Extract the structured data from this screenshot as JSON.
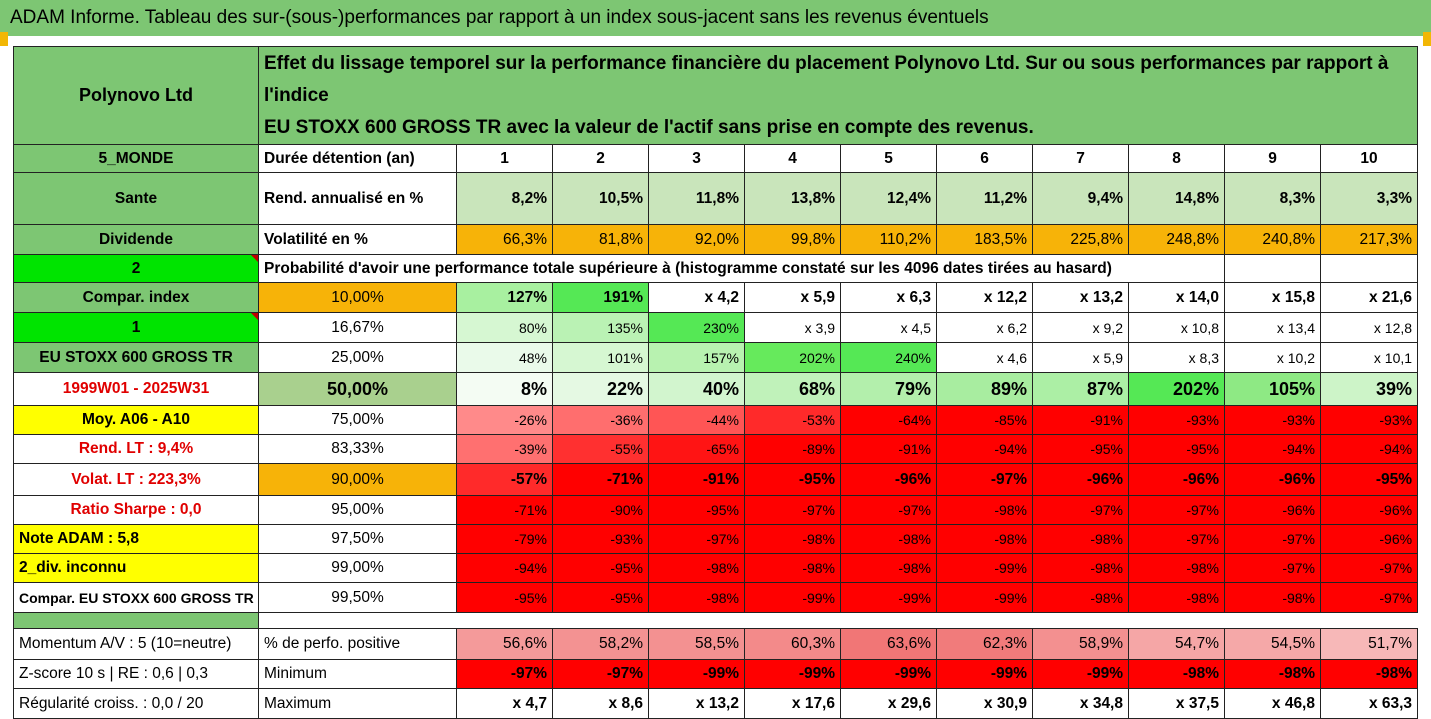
{
  "title": "ADAM Informe. Tableau des sur-(sous-)performances par rapport à un index sous-jacent sans les revenus éventuels",
  "asset_name": "Polynovo Ltd",
  "description_line1": "Effet du lissage temporel sur la performance financière du placement Polynovo Ltd. Sur ou sous performances par rapport à l'indice",
  "description_line2": "EU STOXX 600 GROSS TR avec la valeur de l'actif sans prise en compte des revenus.",
  "left": {
    "region": "5_MONDE",
    "sector": "Sante",
    "dividend": "Dividende",
    "num2": "2",
    "compar_index": "Compar. index",
    "num1": "1",
    "index_name": "EU STOXX 600 GROSS TR",
    "period": "1999W01 - 2025W31",
    "moy": "Moy. A06 - A10",
    "rend_lt": "Rend. LT :   9,4%",
    "volat_lt": "Volat. LT :   223,3%",
    "sharpe": "Ratio Sharpe :   0,0",
    "note": "Note ADAM : 5,8",
    "div": "2_div. inconnu",
    "compar_full": "Compar. EU STOXX 600 GROSS TR",
    "momentum": "Momentum A/V : 5 (10=neutre)",
    "zscore": "Z-score 10 s  |  RE : 0,6  |  0,3",
    "regularite": "Régularité croiss. : 0,0 / 20"
  },
  "header_label": "Durée détention (an)",
  "years": [
    "1",
    "2",
    "3",
    "4",
    "5",
    "6",
    "7",
    "8",
    "9",
    "10"
  ],
  "rend_label": "Rend. annualisé en %",
  "rend": [
    "8,2%",
    "10,5%",
    "11,8%",
    "13,8%",
    "12,4%",
    "11,2%",
    "9,4%",
    "14,8%",
    "8,3%",
    "3,3%"
  ],
  "vol_label": "Volatilité en %",
  "vol": [
    "66,3%",
    "81,8%",
    "92,0%",
    "99,8%",
    "110,2%",
    "183,5%",
    "225,8%",
    "248,8%",
    "240,8%",
    "217,3%"
  ],
  "prob_label": "Probabilité d'avoir une performance totale supérieure à (histogramme constaté sur les 4096 dates tirées au hasard)",
  "rows": [
    {
      "pct": "10,00%",
      "vals": [
        "127%",
        "191%",
        "x 4,2",
        "x 5,9",
        "x 6,3",
        "x 12,2",
        "x 13,2",
        "x 14,0",
        "x 15,8",
        "x 21,6"
      ]
    },
    {
      "pct": "16,67%",
      "vals": [
        "80%",
        "135%",
        "230%",
        "x 3,9",
        "x 4,5",
        "x 6,2",
        "x 9,2",
        "x 10,8",
        "x 13,4",
        "x 12,8"
      ]
    },
    {
      "pct": "25,00%",
      "vals": [
        "48%",
        "101%",
        "157%",
        "202%",
        "240%",
        "x 4,6",
        "x 5,9",
        "x 8,3",
        "x 10,2",
        "x 10,1"
      ]
    },
    {
      "pct": "50,00%",
      "vals": [
        "8%",
        "22%",
        "40%",
        "68%",
        "79%",
        "89%",
        "87%",
        "202%",
        "105%",
        "39%"
      ]
    },
    {
      "pct": "75,00%",
      "vals": [
        "-26%",
        "-36%",
        "-44%",
        "-53%",
        "-64%",
        "-85%",
        "-91%",
        "-93%",
        "-93%",
        "-93%"
      ]
    },
    {
      "pct": "83,33%",
      "vals": [
        "-39%",
        "-55%",
        "-65%",
        "-89%",
        "-91%",
        "-94%",
        "-95%",
        "-95%",
        "-94%",
        "-94%"
      ]
    },
    {
      "pct": "90,00%",
      "vals": [
        "-57%",
        "-71%",
        "-91%",
        "-95%",
        "-96%",
        "-97%",
        "-96%",
        "-96%",
        "-96%",
        "-95%"
      ]
    },
    {
      "pct": "95,00%",
      "vals": [
        "-71%",
        "-90%",
        "-95%",
        "-97%",
        "-97%",
        "-98%",
        "-97%",
        "-97%",
        "-96%",
        "-96%"
      ]
    },
    {
      "pct": "97,50%",
      "vals": [
        "-79%",
        "-93%",
        "-97%",
        "-98%",
        "-98%",
        "-98%",
        "-98%",
        "-97%",
        "-97%",
        "-96%"
      ]
    },
    {
      "pct": "99,00%",
      "vals": [
        "-94%",
        "-95%",
        "-98%",
        "-98%",
        "-98%",
        "-99%",
        "-98%",
        "-98%",
        "-97%",
        "-97%"
      ]
    },
    {
      "pct": "99,50%",
      "vals": [
        "-95%",
        "-95%",
        "-98%",
        "-99%",
        "-99%",
        "-99%",
        "-98%",
        "-98%",
        "-98%",
        "-97%"
      ]
    }
  ],
  "pos_label": "% de perfo. positive",
  "pos": [
    "56,6%",
    "58,2%",
    "58,5%",
    "60,3%",
    "63,6%",
    "62,3%",
    "58,9%",
    "54,7%",
    "54,5%",
    "51,7%"
  ],
  "min_label": "Minimum",
  "min": [
    "-97%",
    "-97%",
    "-99%",
    "-99%",
    "-99%",
    "-99%",
    "-99%",
    "-98%",
    "-98%",
    "-98%"
  ],
  "max_label": "Maximum",
  "max": [
    "x 4,7",
    "x 8,6",
    "x 13,2",
    "x 17,6",
    "x 29,6",
    "x 30,9",
    "x 34,8",
    "x 37,5",
    "x 46,8",
    "x 63,3"
  ],
  "colors": {
    "header_green": "#7dc673",
    "bright_green": "#00e400",
    "orange": "#f7b308",
    "yellow": "#ffff00",
    "red": "#ff0000",
    "red_text": "#e00000"
  },
  "row_colors": [
    [
      "#a8f0a0",
      "#55e855",
      "#ffffff",
      "#ffffff",
      "#ffffff",
      "#ffffff",
      "#ffffff",
      "#ffffff",
      "#ffffff",
      "#ffffff"
    ],
    [
      "#d6f7d2",
      "#baf2b4",
      "#55e855",
      "#ffffff",
      "#ffffff",
      "#ffffff",
      "#ffffff",
      "#ffffff",
      "#ffffff",
      "#ffffff"
    ],
    [
      "#eafaea",
      "#d6f7d2",
      "#b8f2b0",
      "#66ea5c",
      "#55e855",
      "#ffffff",
      "#ffffff",
      "#ffffff",
      "#ffffff",
      "#ffffff"
    ],
    [
      "#f4fcf3",
      "#e5f9e3",
      "#d2f5ce",
      "#c0f2ba",
      "#b3efac",
      "#a8edA0",
      "#acefa5",
      "#55e855",
      "#8ee984",
      "#cdf4c8"
    ],
    [
      "#ff8a8a",
      "#ff6e6e",
      "#ff5555",
      "#ff2a2a",
      "#ff0000",
      "#ff0000",
      "#ff0000",
      "#ff0000",
      "#ff0000",
      "#ff0000"
    ],
    [
      "#ff7070",
      "#ff3030",
      "#ff1414",
      "#ff0000",
      "#ff0000",
      "#ff0000",
      "#ff0000",
      "#ff0000",
      "#ff0000",
      "#ff0000"
    ],
    [
      "#ff2a2a",
      "#ff0000",
      "#ff0000",
      "#ff0000",
      "#ff0000",
      "#ff0000",
      "#ff0000",
      "#ff0000",
      "#ff0000",
      "#ff0000"
    ],
    [
      "#ff0000",
      "#ff0000",
      "#ff0000",
      "#ff0000",
      "#ff0000",
      "#ff0000",
      "#ff0000",
      "#ff0000",
      "#ff0000",
      "#ff0000"
    ],
    [
      "#ff0000",
      "#ff0000",
      "#ff0000",
      "#ff0000",
      "#ff0000",
      "#ff0000",
      "#ff0000",
      "#ff0000",
      "#ff0000",
      "#ff0000"
    ],
    [
      "#ff0000",
      "#ff0000",
      "#ff0000",
      "#ff0000",
      "#ff0000",
      "#ff0000",
      "#ff0000",
      "#ff0000",
      "#ff0000",
      "#ff0000"
    ],
    [
      "#ff0000",
      "#ff0000",
      "#ff0000",
      "#ff0000",
      "#ff0000",
      "#ff0000",
      "#ff0000",
      "#ff0000",
      "#ff0000",
      "#ff0000"
    ]
  ],
  "pos_colors": [
    "#f49a9a",
    "#f39292",
    "#f39191",
    "#f38a8a",
    "#f17676",
    "#f17b7b",
    "#f39090",
    "#f5a6a6",
    "#f5a8a8",
    "#f7b8b8"
  ]
}
